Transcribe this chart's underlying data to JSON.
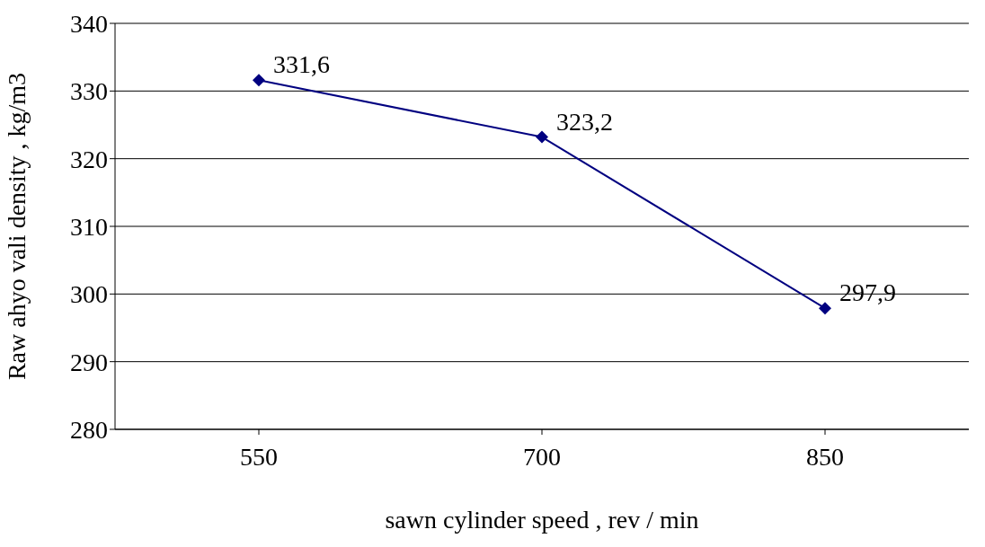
{
  "chart_data": {
    "type": "line",
    "xlabel": "sawn cylinder speed , rev / min",
    "ylabel": "Raw ahyo vali density , kg/m3",
    "categories": [
      "550",
      "700",
      "850"
    ],
    "values": [
      331.6,
      323.2,
      297.9
    ],
    "value_labels": [
      "331,6",
      "323,2",
      "297,9"
    ],
    "color": "#000080",
    "marker": "diamond",
    "line_style": "solid",
    "ylim": [
      280,
      340
    ],
    "yticks": [
      280,
      290,
      300,
      310,
      320,
      330,
      340
    ],
    "grid": "y"
  }
}
